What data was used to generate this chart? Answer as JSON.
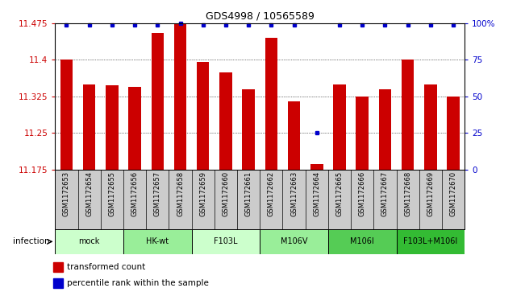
{
  "title": "GDS4998 / 10565589",
  "samples": [
    "GSM1172653",
    "GSM1172654",
    "GSM1172655",
    "GSM1172656",
    "GSM1172657",
    "GSM1172658",
    "GSM1172659",
    "GSM1172660",
    "GSM1172661",
    "GSM1172662",
    "GSM1172663",
    "GSM1172664",
    "GSM1172665",
    "GSM1172666",
    "GSM1172667",
    "GSM1172668",
    "GSM1172669",
    "GSM1172670"
  ],
  "bar_values": [
    11.4,
    11.35,
    11.348,
    11.345,
    11.455,
    11.475,
    11.395,
    11.375,
    11.34,
    11.445,
    11.315,
    11.185,
    11.35,
    11.325,
    11.34,
    11.4,
    11.35,
    11.325
  ],
  "percentile_values": [
    99,
    99,
    99,
    99,
    99,
    100,
    99,
    99,
    99,
    99,
    99,
    25,
    99,
    99,
    99,
    99,
    99,
    99
  ],
  "groups": [
    {
      "label": "mock",
      "start": 0,
      "end": 2,
      "color": "#ccffcc"
    },
    {
      "label": "HK-wt",
      "start": 3,
      "end": 5,
      "color": "#99ee99"
    },
    {
      "label": "F103L",
      "start": 6,
      "end": 8,
      "color": "#ccffcc"
    },
    {
      "label": "M106V",
      "start": 9,
      "end": 11,
      "color": "#99ee99"
    },
    {
      "label": "M106I",
      "start": 12,
      "end": 14,
      "color": "#55cc55"
    },
    {
      "label": "F103L+M106I",
      "start": 15,
      "end": 17,
      "color": "#33bb33"
    }
  ],
  "ylim": [
    11.175,
    11.475
  ],
  "yticks": [
    11.175,
    11.25,
    11.325,
    11.4,
    11.475
  ],
  "ytick_labels": [
    "11.175",
    "11.25",
    "11.325",
    "11.4",
    "11.475"
  ],
  "right_yticks": [
    0,
    25,
    50,
    75,
    100
  ],
  "right_ytick_labels": [
    "0",
    "25",
    "50",
    "75",
    "100%"
  ],
  "bar_color": "#cc0000",
  "dot_color": "#0000cc",
  "ylabel_color": "#cc0000",
  "right_ylabel_color": "#0000cc",
  "infection_label": "infection",
  "legend_bar_label": "transformed count",
  "legend_dot_label": "percentile rank within the sample",
  "background_color": "#ffffff",
  "sample_bg_color": "#cccccc"
}
